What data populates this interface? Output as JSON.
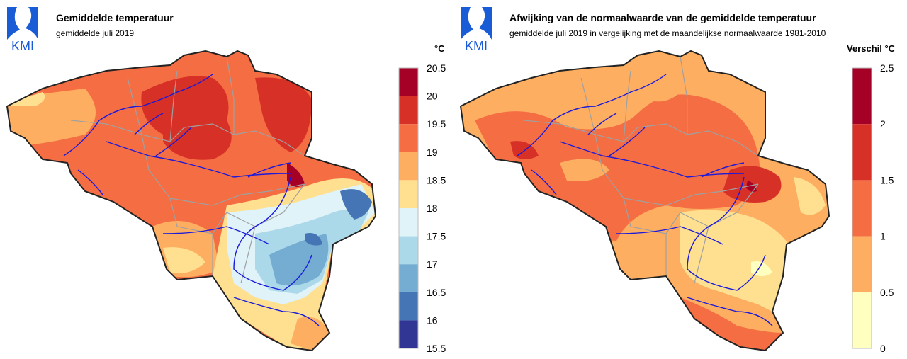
{
  "logo_text": "KMI",
  "left": {
    "title": "Gemiddelde temperatuur",
    "subtitle": "gemiddelde juli 2019",
    "unit": "°C",
    "legend": {
      "ticks": [
        "20.5",
        "20",
        "19.5",
        "19",
        "18.5",
        "18",
        "17.5",
        "17",
        "16.5",
        "16",
        "15.5"
      ],
      "colors": [
        "#a50026",
        "#d73027",
        "#f46d43",
        "#fdae61",
        "#fee090",
        "#e0f3f8",
        "#abd9e9",
        "#74add1",
        "#4575b4",
        "#313695"
      ]
    }
  },
  "right": {
    "title": "Afwijking van de normaalwaarde van de gemiddelde temperatuur",
    "subtitle": "gemiddelde juli 2019 in vergelijking met de maandelijkse normaalwaarde 1981-2010",
    "unit": "Verschil °C",
    "legend": {
      "ticks": [
        "2.5",
        "2",
        "1.5",
        "1",
        "0.5",
        "0"
      ],
      "colors": [
        "#a50026",
        "#d73027",
        "#f46d43",
        "#fdae61",
        "#ffffbf"
      ]
    }
  },
  "colors": {
    "border": "#222222",
    "rivers": "#1a1adb",
    "provinces": "#a0a0a0",
    "logo_blue": "#1a5bd6"
  }
}
